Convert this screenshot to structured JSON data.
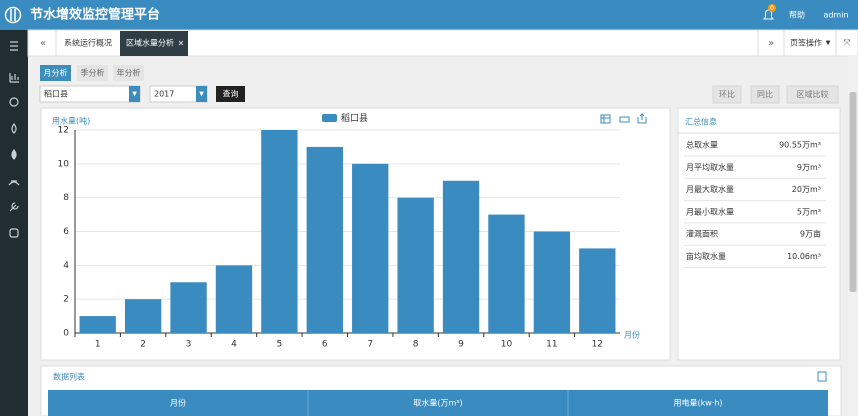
{
  "header": {
    "title": "节水增效监控管理平台",
    "badge": "0",
    "help": "帮助",
    "user": "admin"
  },
  "tabs": {
    "items": [
      "系统运行概况",
      "区域水量分析"
    ],
    "tab_menu": "页签操作"
  },
  "subtabs": [
    "月分析",
    "季分析",
    "年分析"
  ],
  "filters": {
    "region": "稻口县",
    "year": "2017",
    "query": "查询",
    "buttons": [
      "环比",
      "同比",
      "区域比较"
    ]
  },
  "chart_data": {
    "type": "bar",
    "y_label": "用水量(吨)",
    "x_label": "月份",
    "categories": [
      "1",
      "2",
      "3",
      "4",
      "5",
      "6",
      "7",
      "8",
      "9",
      "10",
      "11",
      "12"
    ],
    "series": [
      {
        "name": "稻口县",
        "color": "#3a8bbf",
        "values": [
          1,
          2,
          3,
          4,
          12,
          11,
          10,
          8,
          9,
          7,
          6,
          5
        ]
      }
    ],
    "ylim": [
      0,
      12
    ],
    "yticks": [
      0,
      2,
      4,
      6,
      8,
      10,
      12
    ],
    "grid": true
  },
  "summary": {
    "title": "汇总信息",
    "rows": [
      [
        "总取水量",
        "90.55万m³"
      ],
      [
        "月平均取水量",
        "9万m³"
      ],
      [
        "月最大取水量",
        "20万m³"
      ],
      [
        "月最小取水量",
        "5万m³"
      ],
      [
        "灌溉面积",
        "9万亩"
      ],
      [
        "亩均取水量",
        "10.06m³"
      ]
    ]
  },
  "table": {
    "title": "数据列表",
    "columns": [
      "月份",
      "取水量(万m³)",
      "用电量(kw·h)"
    ]
  }
}
